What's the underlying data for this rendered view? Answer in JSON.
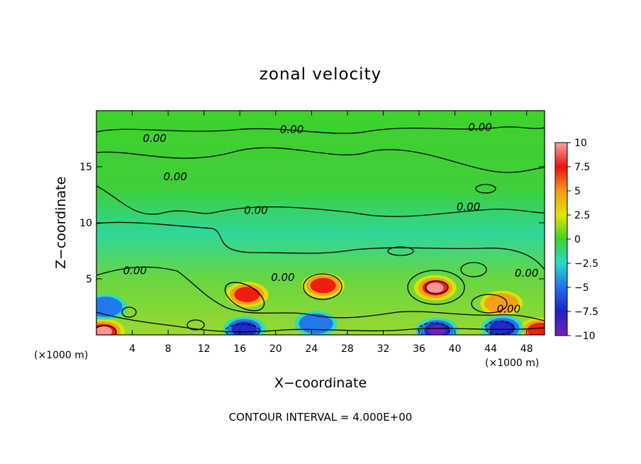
{
  "chart_data": {
    "type": "heatmap",
    "title": "zonal velocity",
    "xlabel": "X−coordinate",
    "ylabel": "Z−coordinate",
    "x_unit_left": "(×1000 m)",
    "x_unit_right": "(×1000 m)",
    "xlim": [
      0,
      50
    ],
    "ylim": [
      0,
      20
    ],
    "x_ticks": [
      4,
      8,
      12,
      16,
      20,
      24,
      28,
      32,
      36,
      40,
      44,
      48
    ],
    "x_tick_labels": [
      "4",
      "8",
      "12",
      "16",
      "20",
      "24",
      "28",
      "32",
      "36",
      "40",
      "44",
      "48"
    ],
    "y_ticks": [
      5,
      10,
      15
    ],
    "y_tick_labels": [
      "5",
      "10",
      "15"
    ],
    "colorbar": {
      "range": [
        -10,
        10
      ],
      "ticks": [
        10,
        7.5,
        5,
        2.5,
        0,
        -2.5,
        -5,
        -7.5,
        -10
      ],
      "tick_labels": [
        "10",
        "7.5",
        "5",
        "2.5",
        "0",
        "−2.5",
        "−5",
        "−7.5",
        "−10"
      ],
      "colors_top_to_bottom": [
        "#f7a3a3",
        "#ee1010",
        "#f49a1a",
        "#e2e400",
        "#3fd12a",
        "#26dcc8",
        "#1f6ff2",
        "#2020c8",
        "#7a1fb8"
      ]
    },
    "features": [
      {
        "x": 16.8,
        "z": 3.6,
        "value": 6.5
      },
      {
        "x": 25.3,
        "z": 4.4,
        "value": 7.0
      },
      {
        "x": 37.8,
        "z": 4.2,
        "value": 9.0
      },
      {
        "x": 45.2,
        "z": 2.8,
        "value": 6.0
      },
      {
        "x": 0.8,
        "z": 0.3,
        "value": 9.0
      },
      {
        "x": 49.5,
        "z": 0.4,
        "value": 7.0
      },
      {
        "x": 38.0,
        "z": 0.4,
        "value": -10.0
      },
      {
        "x": 45.3,
        "z": 0.6,
        "value": -8.0
      },
      {
        "x": 16.5,
        "z": 0.5,
        "value": -6.5
      },
      {
        "x": 24.5,
        "z": 1.0,
        "value": -5.0
      },
      {
        "x": 1.0,
        "z": 2.5,
        "value": -4.0
      }
    ],
    "contour_labels": [
      {
        "text": "0.00",
        "x": 21.8,
        "z": 18.0
      },
      {
        "text": "0.00",
        "x": 42.8,
        "z": 18.2
      },
      {
        "text": "0.00",
        "x": 6.5,
        "z": 17.2
      },
      {
        "text": "0.00",
        "x": 8.8,
        "z": 13.8
      },
      {
        "text": "0.00",
        "x": 17.8,
        "z": 10.8
      },
      {
        "text": "0.00",
        "x": 41.5,
        "z": 11.1
      },
      {
        "text": "0.00",
        "x": 4.3,
        "z": 5.4
      },
      {
        "text": "0.00",
        "x": 20.8,
        "z": 4.8
      },
      {
        "text": "0.00",
        "x": 48.0,
        "z": 5.2
      },
      {
        "text": "0.00",
        "x": 46.0,
        "z": 2.0
      }
    ],
    "footnote": "CONTOUR INTERVAL = 4.000E+00"
  }
}
